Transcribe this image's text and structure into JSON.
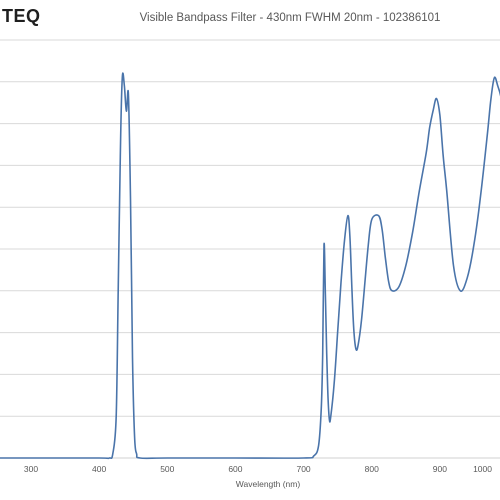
{
  "header": {
    "logo_text": "TEQ",
    "title": "Visible Bandpass Filter - 430nm FWHM 20nm - 102386101"
  },
  "chart_data": {
    "type": "line",
    "title": "Visible Bandpass Filter - 430nm FWHM 20nm - 102386101",
    "xlabel": "Wavelength (nm)",
    "ylabel": "",
    "xlim": [
      200,
      1000
    ],
    "ylim": [
      0,
      100
    ],
    "x_ticks": [
      "300",
      "400",
      "500",
      "600",
      "700",
      "800",
      "900",
      "1000"
    ],
    "grid": true,
    "line_color": "#4a74aa",
    "series": [
      {
        "name": "",
        "x": [
          200,
          300,
          400,
          415,
          420,
          425,
          428,
          431,
          434,
          437,
          440,
          443,
          446,
          449,
          452,
          455,
          460,
          500,
          600,
          700,
          715,
          722,
          726,
          728,
          730,
          732,
          734,
          736,
          738,
          740,
          745,
          750,
          755,
          760,
          765,
          768,
          771,
          774,
          777,
          780,
          785,
          790,
          795,
          800,
          810,
          815,
          820,
          825,
          830,
          840,
          850,
          860,
          870,
          880,
          885,
          890,
          895,
          900,
          905,
          910,
          920,
          930,
          940,
          950,
          960,
          970,
          975,
          980,
          985,
          990,
          995,
          1000
        ],
        "y": [
          0,
          0,
          0,
          0,
          1,
          10,
          40,
          72,
          91,
          89,
          83,
          87,
          62,
          24,
          5,
          1,
          0,
          0,
          0,
          0,
          0.5,
          3,
          12,
          25,
          51,
          39,
          25,
          14,
          9,
          10,
          18,
          30,
          42,
          52,
          58,
          53,
          40,
          30,
          26,
          27,
          33,
          42,
          51,
          57,
          58,
          55,
          48,
          42,
          40,
          41,
          46,
          54,
          64,
          73,
          79,
          83,
          86,
          82,
          72,
          64,
          46,
          40,
          43,
          51,
          63,
          78,
          86,
          91,
          89,
          86,
          79,
          68
        ]
      }
    ]
  }
}
